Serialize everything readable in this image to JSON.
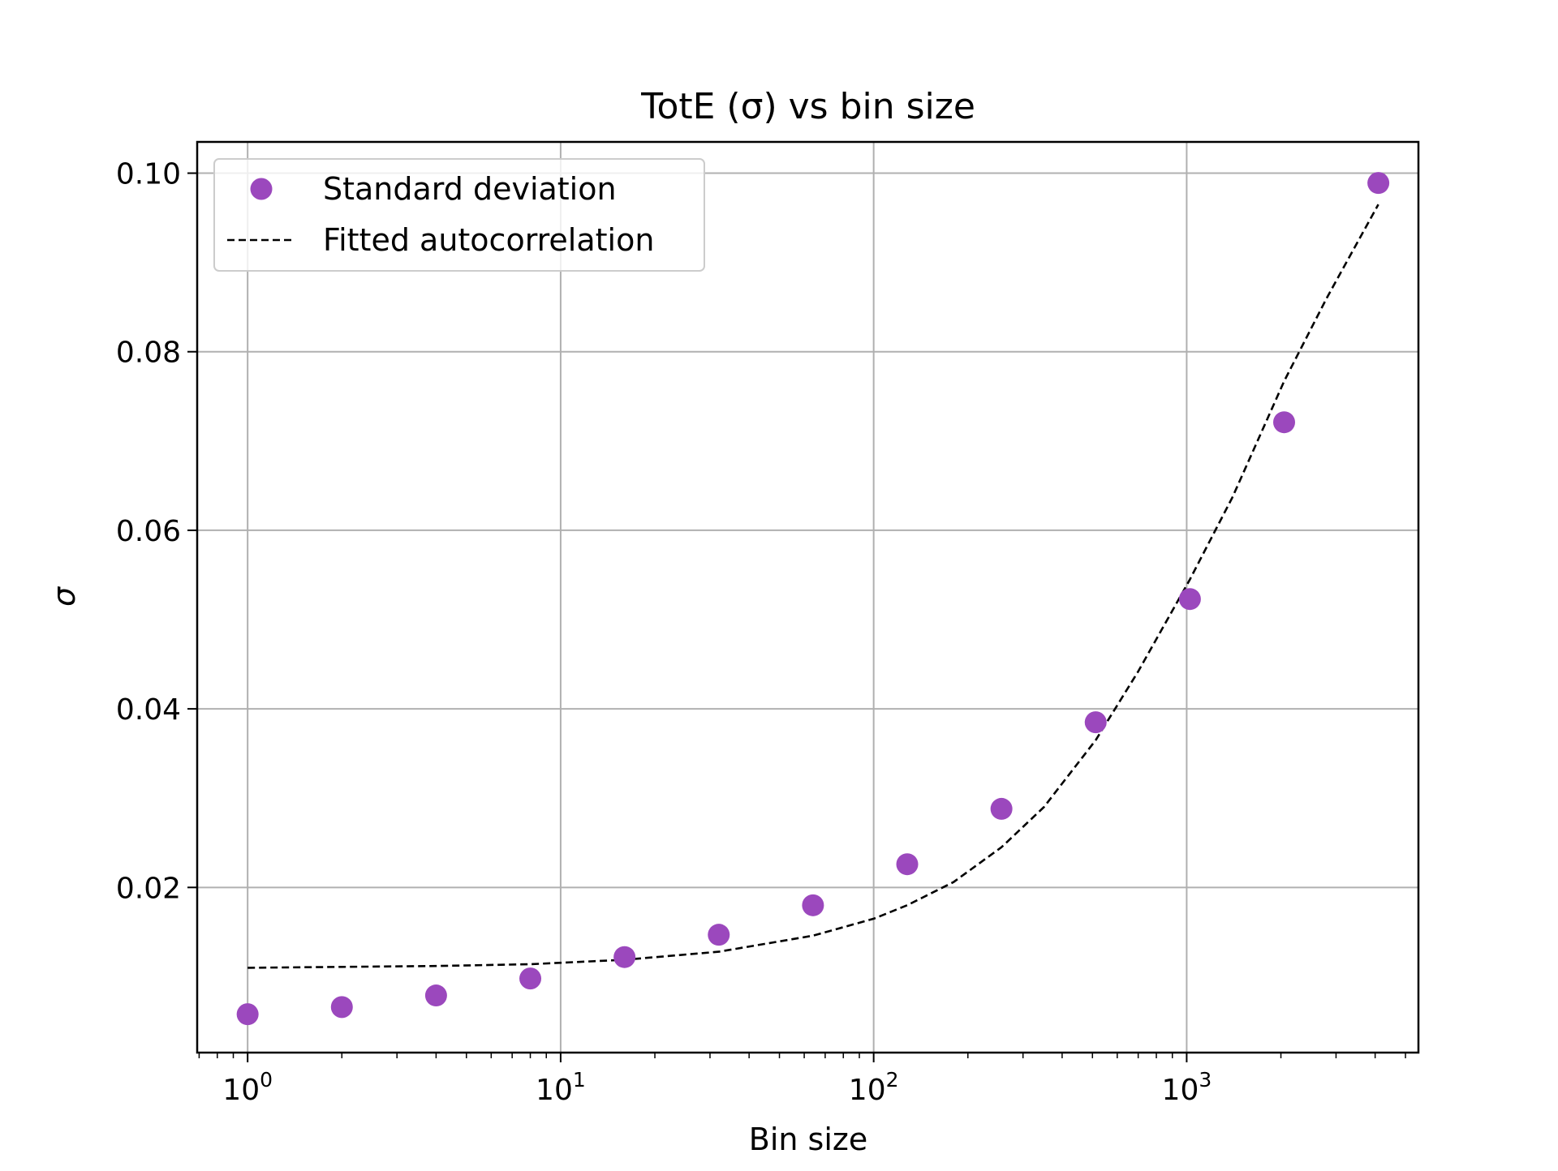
{
  "chart_data": {
    "type": "scatter",
    "title": "TotE (σ) vs bin size",
    "xlabel": "Bin size",
    "ylabel": "σ",
    "xscale": "log",
    "xlim": [
      0.69,
      5500
    ],
    "ylim": [
      0.0015,
      0.1035
    ],
    "grid": true,
    "legend_position": "top-left",
    "x_ticks": [
      {
        "base": "10",
        "exp": "0",
        "value": 1
      },
      {
        "base": "10",
        "exp": "1",
        "value": 10
      },
      {
        "base": "10",
        "exp": "2",
        "value": 100
      },
      {
        "base": "10",
        "exp": "3",
        "value": 1000
      }
    ],
    "y_ticks": [
      {
        "label": "0.02",
        "value": 0.02
      },
      {
        "label": "0.04",
        "value": 0.04
      },
      {
        "label": "0.06",
        "value": 0.06
      },
      {
        "label": "0.08",
        "value": 0.08
      },
      {
        "label": "0.10",
        "value": 0.1
      }
    ],
    "series": [
      {
        "name": "Standard deviation",
        "kind": "scatter",
        "color": "#9b48bd",
        "x": [
          1,
          2,
          4,
          8,
          16,
          32,
          64,
          128,
          256,
          512,
          1024,
          2048,
          4096
        ],
        "y": [
          0.0058,
          0.0066,
          0.0079,
          0.0098,
          0.0122,
          0.0147,
          0.018,
          0.0226,
          0.0288,
          0.0385,
          0.0523,
          0.0721,
          0.0989
        ]
      },
      {
        "name": "Fitted autocorrelation",
        "kind": "line",
        "color": "#000000",
        "style": "dashed",
        "x": [
          1,
          2,
          4,
          8,
          16,
          32,
          64,
          100,
          128,
          180,
          256,
          350,
          512,
          700,
          1024,
          1400,
          2048,
          2800,
          4096
        ],
        "y": [
          0.011,
          0.0111,
          0.0112,
          0.0114,
          0.0119,
          0.0128,
          0.0146,
          0.0165,
          0.018,
          0.0206,
          0.0245,
          0.029,
          0.0365,
          0.0442,
          0.0545,
          0.0637,
          0.0767,
          0.086,
          0.0965
        ]
      }
    ]
  }
}
